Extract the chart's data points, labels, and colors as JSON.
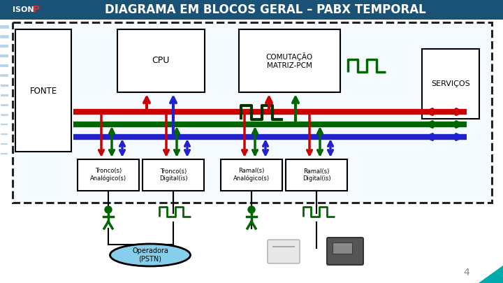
{
  "title": "DIAGRAMA EM BLOCOS GERAL – PABX TEMPORAL",
  "title_bg": "#1a5276",
  "title_color": "#ffffff",
  "title_fontsize": 12,
  "fonte_label": "FONTE",
  "cpu_label": "CPU",
  "comutacao_label": "COMUTAÇÃO\nMATRIZ-PCM",
  "servicos_label": "SERVIÇOS",
  "bottom_boxes": [
    "Tronco(s)\nAnalógico(s)",
    "Tronco(s)\nDigital(is)",
    "Ramal(s)\nAnalógico(s)",
    "Ramal(s)\nDigital(is)"
  ],
  "bottom_label": "Operadora\n(PSTN)",
  "page_number": "4",
  "color_red": "#cc0000",
  "color_blue": "#2222cc",
  "color_green": "#006600",
  "sidebar_color": "#b8d4e8"
}
